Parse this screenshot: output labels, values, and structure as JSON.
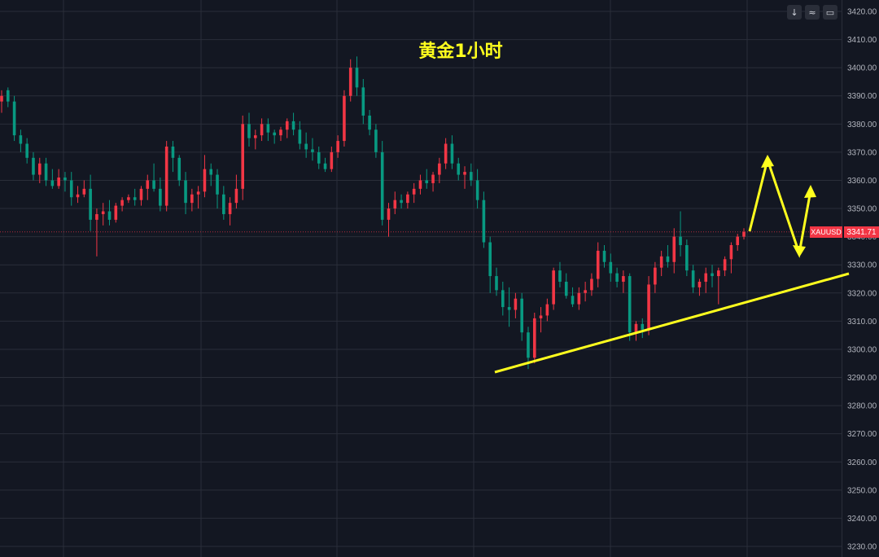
{
  "toolbar": {
    "buttons": [
      {
        "name": "download-icon",
        "glyph": "↓"
      },
      {
        "name": "scale-toggle-icon",
        "glyph": "≈"
      },
      {
        "name": "fullscreen-icon",
        "glyph": "▭"
      }
    ]
  },
  "current_price": {
    "symbol": "XAUUSD",
    "value": "3341.71"
  },
  "colors": {
    "background": "#131722",
    "up": "#f23645",
    "down": "#089981",
    "annotation": "#ffff1e",
    "grid": "#2a2e39",
    "price_line": "#f23645"
  },
  "chart_data": {
    "type": "candlestick",
    "title": "黄金1小时",
    "xlabel": "",
    "ylabel": "",
    "ylim": [
      3227,
      3425
    ],
    "y_ticks": [
      "3420.00",
      "3410.00",
      "3400.00",
      "3390.00",
      "3380.00",
      "3370.00",
      "3360.00",
      "3350.00",
      "3340.00",
      "3330.00",
      "3320.00",
      "3310.00",
      "3300.00",
      "3290.00",
      "3280.00",
      "3270.00",
      "3260.00",
      "3250.00",
      "3240.00",
      "3230.00"
    ],
    "grid": true,
    "current_price": 3341.71,
    "candles": [
      [
        3388,
        3392,
        3384,
        3390
      ],
      [
        3392,
        3393,
        3386,
        3388
      ],
      [
        3388,
        3390,
        3374,
        3376
      ],
      [
        3376,
        3378,
        3370,
        3373
      ],
      [
        3373,
        3375,
        3366,
        3368
      ],
      [
        3368,
        3370,
        3360,
        3362
      ],
      [
        3362,
        3368,
        3359,
        3366
      ],
      [
        3366,
        3368,
        3358,
        3360
      ],
      [
        3360,
        3364,
        3357,
        3358
      ],
      [
        3358,
        3364,
        3357,
        3361
      ],
      [
        3361,
        3363,
        3356,
        3360
      ],
      [
        3360,
        3363,
        3351,
        3354
      ],
      [
        3354,
        3358,
        3352,
        3355
      ],
      [
        3355,
        3360,
        3354,
        3357
      ],
      [
        3357,
        3362,
        3342,
        3346
      ],
      [
        3346,
        3350,
        3333,
        3348
      ],
      [
        3348,
        3352,
        3344,
        3349
      ],
      [
        3349,
        3353,
        3344,
        3346
      ],
      [
        3346,
        3352,
        3345,
        3351
      ],
      [
        3351,
        3354,
        3349,
        3353
      ],
      [
        3353,
        3355,
        3352,
        3354
      ],
      [
        3354,
        3357,
        3351,
        3353
      ],
      [
        3353,
        3358,
        3351,
        3357
      ],
      [
        3357,
        3362,
        3353,
        3360
      ],
      [
        3360,
        3366,
        3356,
        3357
      ],
      [
        3357,
        3361,
        3349,
        3351
      ],
      [
        3351,
        3374,
        3349,
        3372
      ],
      [
        3372,
        3374,
        3363,
        3368
      ],
      [
        3368,
        3369,
        3358,
        3360
      ],
      [
        3360,
        3363,
        3348,
        3352
      ],
      [
        3352,
        3357,
        3349,
        3355
      ],
      [
        3355,
        3358,
        3350,
        3356
      ],
      [
        3356,
        3369,
        3354,
        3364
      ],
      [
        3364,
        3366,
        3358,
        3362
      ],
      [
        3362,
        3364,
        3350,
        3355
      ],
      [
        3355,
        3358,
        3346,
        3348
      ],
      [
        3348,
        3354,
        3344,
        3352
      ],
      [
        3352,
        3362,
        3350,
        3357
      ],
      [
        3357,
        3383,
        3353,
        3380
      ],
      [
        3380,
        3384,
        3372,
        3375
      ],
      [
        3375,
        3378,
        3371,
        3376
      ],
      [
        3376,
        3382,
        3374,
        3380
      ],
      [
        3380,
        3382,
        3374,
        3377
      ],
      [
        3377,
        3378,
        3373,
        3376
      ],
      [
        3376,
        3379,
        3374,
        3378
      ],
      [
        3378,
        3382,
        3375,
        3381
      ],
      [
        3381,
        3384,
        3376,
        3378
      ],
      [
        3378,
        3381,
        3371,
        3373
      ],
      [
        3373,
        3377,
        3368,
        3371
      ],
      [
        3371,
        3375,
        3367,
        3370
      ],
      [
        3370,
        3372,
        3364,
        3366
      ],
      [
        3366,
        3368,
        3363,
        3364
      ],
      [
        3364,
        3372,
        3363,
        3370
      ],
      [
        3370,
        3376,
        3368,
        3374
      ],
      [
        3374,
        3392,
        3372,
        3390
      ],
      [
        3390,
        3403,
        3388,
        3400
      ],
      [
        3400,
        3404,
        3390,
        3393
      ],
      [
        3393,
        3396,
        3380,
        3383
      ],
      [
        3383,
        3385,
        3376,
        3378
      ],
      [
        3378,
        3380,
        3368,
        3370
      ],
      [
        3370,
        3374,
        3344,
        3346
      ],
      [
        3346,
        3352,
        3340,
        3350
      ],
      [
        3350,
        3356,
        3348,
        3353
      ],
      [
        3353,
        3355,
        3350,
        3352
      ],
      [
        3352,
        3356,
        3350,
        3355
      ],
      [
        3355,
        3359,
        3352,
        3357
      ],
      [
        3357,
        3362,
        3355,
        3360
      ],
      [
        3360,
        3364,
        3357,
        3359
      ],
      [
        3359,
        3363,
        3356,
        3362
      ],
      [
        3362,
        3368,
        3359,
        3366
      ],
      [
        3366,
        3375,
        3364,
        3373
      ],
      [
        3373,
        3376,
        3364,
        3366
      ],
      [
        3366,
        3368,
        3360,
        3362
      ],
      [
        3362,
        3365,
        3357,
        3363
      ],
      [
        3363,
        3366,
        3358,
        3360
      ],
      [
        3360,
        3364,
        3350,
        3353
      ],
      [
        3353,
        3356,
        3336,
        3338
      ],
      [
        3338,
        3340,
        3320,
        3326
      ],
      [
        3326,
        3329,
        3319,
        3321
      ],
      [
        3321,
        3324,
        3312,
        3315
      ],
      [
        3315,
        3322,
        3308,
        3314
      ],
      [
        3314,
        3320,
        3311,
        3318
      ],
      [
        3318,
        3320,
        3303,
        3306
      ],
      [
        3306,
        3308,
        3293,
        3297
      ],
      [
        3297,
        3313,
        3295,
        3311
      ],
      [
        3311,
        3315,
        3306,
        3312
      ],
      [
        3312,
        3318,
        3310,
        3316
      ],
      [
        3316,
        3329,
        3314,
        3328
      ],
      [
        3328,
        3331,
        3322,
        3324
      ],
      [
        3324,
        3327,
        3318,
        3319
      ],
      [
        3319,
        3322,
        3315,
        3316
      ],
      [
        3316,
        3322,
        3314,
        3320
      ],
      [
        3320,
        3324,
        3317,
        3321
      ],
      [
        3321,
        3327,
        3319,
        3325
      ],
      [
        3325,
        3338,
        3322,
        3335
      ],
      [
        3335,
        3337,
        3329,
        3331
      ],
      [
        3331,
        3334,
        3324,
        3327
      ],
      [
        3327,
        3329,
        3322,
        3324
      ],
      [
        3324,
        3328,
        3320,
        3326
      ],
      [
        3326,
        3327,
        3303,
        3306
      ],
      [
        3306,
        3310,
        3303,
        3309
      ],
      [
        3309,
        3311,
        3304,
        3307
      ],
      [
        3307,
        3326,
        3305,
        3323
      ],
      [
        3323,
        3331,
        3320,
        3329
      ],
      [
        3329,
        3335,
        3326,
        3333
      ],
      [
        3333,
        3337,
        3329,
        3331
      ],
      [
        3331,
        3343,
        3327,
        3340
      ],
      [
        3340,
        3349,
        3333,
        3337
      ],
      [
        3337,
        3339,
        3326,
        3328
      ],
      [
        3328,
        3330,
        3320,
        3322
      ],
      [
        3322,
        3325,
        3319,
        3324
      ],
      [
        3324,
        3329,
        3320,
        3327
      ],
      [
        3327,
        3330,
        3322,
        3326
      ],
      [
        3326,
        3329,
        3316,
        3328
      ],
      [
        3328,
        3333,
        3326,
        3332
      ],
      [
        3332,
        3338,
        3327,
        3337
      ],
      [
        3337,
        3341,
        3335,
        3340
      ],
      [
        3340,
        3343,
        3339,
        3341.71
      ]
    ],
    "annotations": [
      {
        "type": "trendline",
        "color": "#ffff1e",
        "from": [
          3293,
          3292
        ],
        "to": [
          3331,
          3326
        ]
      },
      {
        "type": "projection-arrow",
        "color": "#ffff1e",
        "note": "up-down-up path"
      }
    ]
  }
}
